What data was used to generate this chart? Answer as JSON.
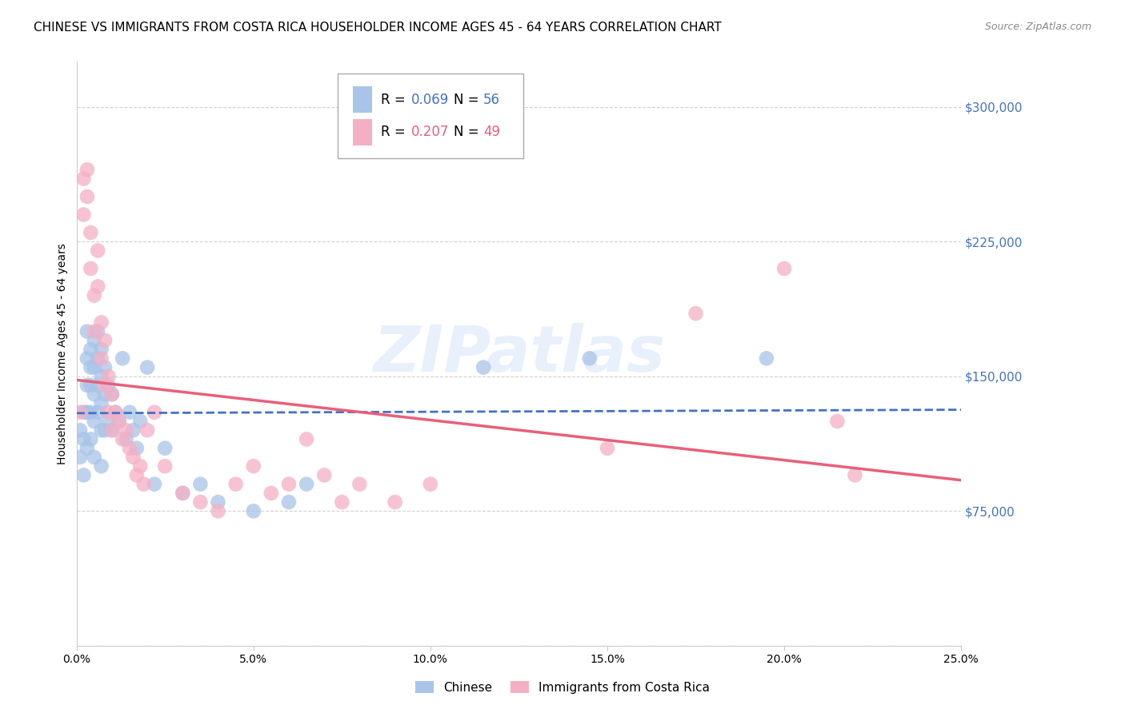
{
  "title": "CHINESE VS IMMIGRANTS FROM COSTA RICA HOUSEHOLDER INCOME AGES 45 - 64 YEARS CORRELATION CHART",
  "source": "Source: ZipAtlas.com",
  "ylabel": "Householder Income Ages 45 - 64 years",
  "xlim": [
    0,
    0.25
  ],
  "ylim": [
    0,
    325000
  ],
  "yticks": [
    0,
    75000,
    150000,
    225000,
    300000
  ],
  "ytick_labels": [
    "",
    "$75,000",
    "$150,000",
    "$225,000",
    "$300,000"
  ],
  "xtick_labels": [
    "0.0%",
    "5.0%",
    "10.0%",
    "15.0%",
    "20.0%",
    "25.0%"
  ],
  "xticks": [
    0.0,
    0.05,
    0.1,
    0.15,
    0.2,
    0.25
  ],
  "chinese_color": "#a8c4e8",
  "costa_rica_color": "#f5afc4",
  "chinese_line_color": "#4472c4",
  "costa_rica_line_color": "#e8607a",
  "legend_R_chinese": "0.069",
  "legend_N_chinese": "56",
  "legend_R_costa": "0.207",
  "legend_N_costa": "49",
  "watermark": "ZIPatlas",
  "chinese_x": [
    0.001,
    0.001,
    0.002,
    0.002,
    0.002,
    0.003,
    0.003,
    0.003,
    0.003,
    0.003,
    0.004,
    0.004,
    0.004,
    0.004,
    0.004,
    0.005,
    0.005,
    0.005,
    0.005,
    0.005,
    0.006,
    0.006,
    0.006,
    0.006,
    0.007,
    0.007,
    0.007,
    0.007,
    0.007,
    0.008,
    0.008,
    0.008,
    0.009,
    0.009,
    0.01,
    0.01,
    0.011,
    0.012,
    0.013,
    0.014,
    0.015,
    0.016,
    0.017,
    0.018,
    0.02,
    0.022,
    0.025,
    0.03,
    0.035,
    0.04,
    0.05,
    0.06,
    0.065,
    0.115,
    0.145,
    0.195
  ],
  "chinese_y": [
    120000,
    105000,
    130000,
    115000,
    95000,
    175000,
    160000,
    145000,
    130000,
    110000,
    165000,
    155000,
    145000,
    130000,
    115000,
    170000,
    155000,
    140000,
    125000,
    105000,
    175000,
    160000,
    145000,
    130000,
    165000,
    150000,
    135000,
    120000,
    100000,
    155000,
    140000,
    120000,
    145000,
    125000,
    140000,
    120000,
    130000,
    125000,
    160000,
    115000,
    130000,
    120000,
    110000,
    125000,
    155000,
    90000,
    110000,
    85000,
    90000,
    80000,
    75000,
    80000,
    90000,
    155000,
    160000,
    160000
  ],
  "costa_rica_x": [
    0.001,
    0.002,
    0.002,
    0.003,
    0.003,
    0.004,
    0.004,
    0.005,
    0.005,
    0.006,
    0.006,
    0.007,
    0.007,
    0.008,
    0.008,
    0.009,
    0.009,
    0.01,
    0.01,
    0.011,
    0.012,
    0.013,
    0.014,
    0.015,
    0.016,
    0.017,
    0.018,
    0.019,
    0.02,
    0.022,
    0.025,
    0.03,
    0.035,
    0.04,
    0.045,
    0.05,
    0.055,
    0.06,
    0.065,
    0.07,
    0.075,
    0.08,
    0.09,
    0.1,
    0.15,
    0.175,
    0.2,
    0.215,
    0.22
  ],
  "costa_rica_y": [
    130000,
    260000,
    240000,
    265000,
    250000,
    230000,
    210000,
    195000,
    175000,
    220000,
    200000,
    180000,
    160000,
    170000,
    145000,
    150000,
    130000,
    140000,
    120000,
    130000,
    125000,
    115000,
    120000,
    110000,
    105000,
    95000,
    100000,
    90000,
    120000,
    130000,
    100000,
    85000,
    80000,
    75000,
    90000,
    100000,
    85000,
    90000,
    115000,
    95000,
    80000,
    90000,
    80000,
    90000,
    110000,
    185000,
    210000,
    125000,
    95000
  ],
  "bg_color": "#ffffff",
  "grid_color": "#cccccc",
  "title_fontsize": 11,
  "axis_label_fontsize": 10,
  "tick_fontsize": 10,
  "right_tick_color": "#4472c4"
}
